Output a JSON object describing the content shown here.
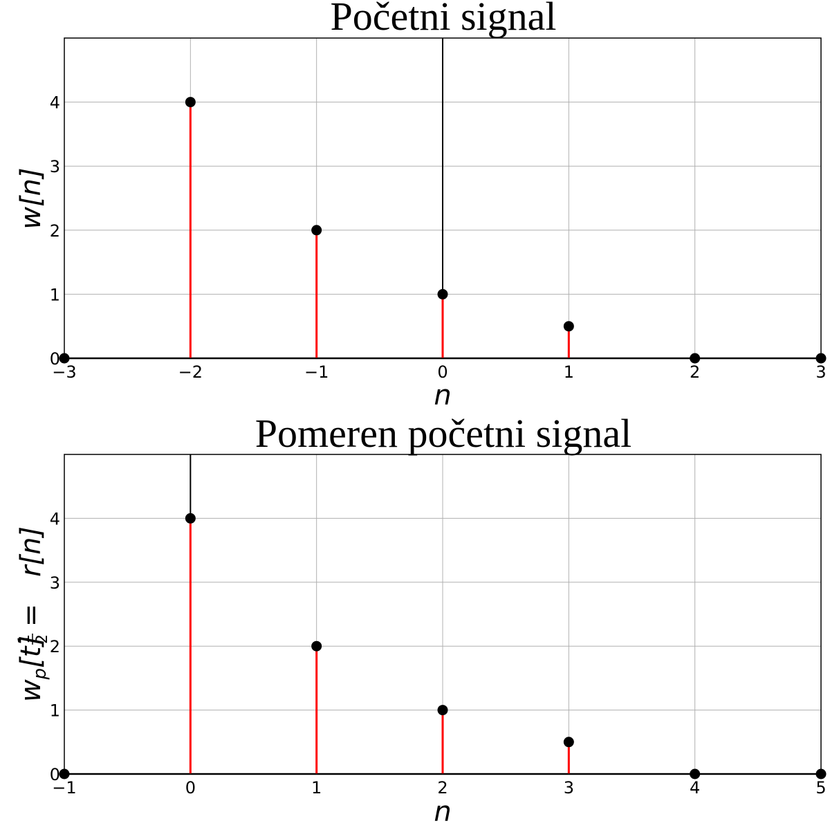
{
  "chart_data": [
    {
      "type": "stem",
      "title": "Početni signal",
      "xlabel": "n",
      "ylabel": "w[n]",
      "xlim": [
        -3,
        3
      ],
      "ylim": [
        0,
        5
      ],
      "xticks": [
        "−3",
        "−2",
        "−1",
        "0",
        "1",
        "2",
        "3"
      ],
      "yticks": [
        "0",
        "1",
        "2",
        "3",
        "4"
      ],
      "grid": true,
      "x": [
        -3,
        -2,
        -1,
        0,
        1,
        2,
        3
      ],
      "y": [
        0,
        4,
        2,
        1,
        0.5,
        0,
        0
      ],
      "stem_color": "#ff0000",
      "marker_color": "#000000"
    },
    {
      "type": "stem",
      "title": "Pomeren početni signal",
      "xlabel": "n",
      "ylabel": "w_p[t] = ½ r[n]",
      "ylabel_parts": {
        "w": "w",
        "sub": "p",
        "mid": "[t] = ",
        "num": "1",
        "den": "2",
        "tail": "r[n]"
      },
      "xlim": [
        -1,
        5
      ],
      "ylim": [
        0,
        5
      ],
      "xticks": [
        "−1",
        "0",
        "1",
        "2",
        "3",
        "4",
        "5"
      ],
      "yticks": [
        "0",
        "1",
        "2",
        "3",
        "4"
      ],
      "grid": true,
      "x": [
        -1,
        0,
        1,
        2,
        3,
        4,
        5
      ],
      "y": [
        0,
        4,
        2,
        1,
        0.5,
        0,
        0
      ],
      "stem_color": "#ff0000",
      "marker_color": "#000000"
    }
  ]
}
